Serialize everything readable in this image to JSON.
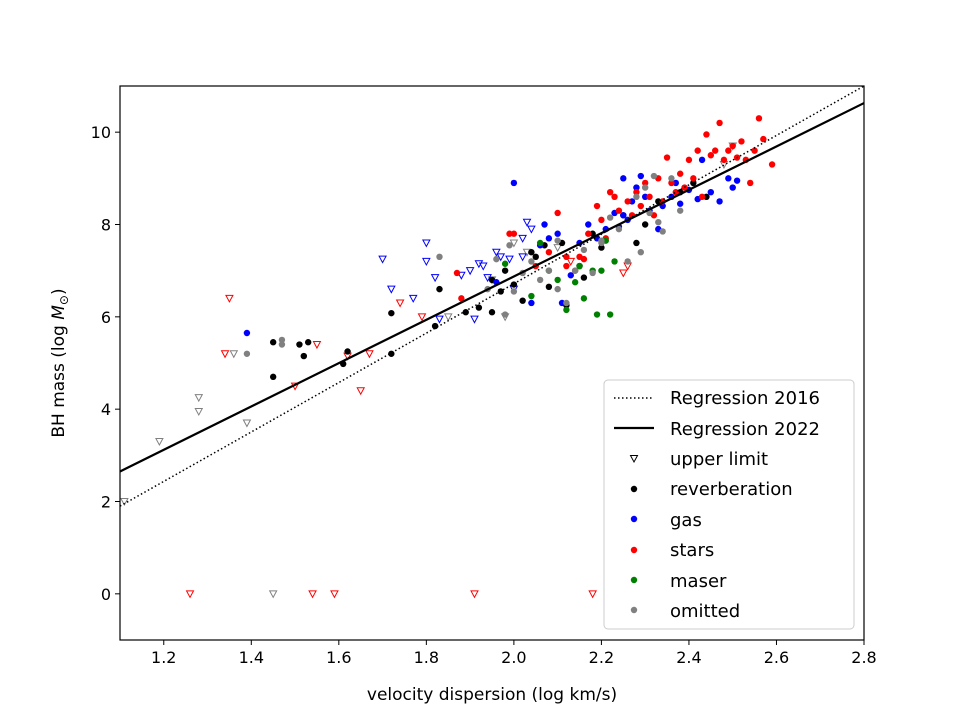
{
  "chart_data": {
    "type": "scatter",
    "title": "",
    "xlabel": "velocity dispersion (log km/s)",
    "ylabel_main": "BH mass (log ",
    "ylabel_symbol": "M",
    "ylabel_sub": "⊙",
    "ylabel_close": ")",
    "xlim": [
      1.1,
      2.8
    ],
    "ylim": [
      -1.0,
      11.0
    ],
    "xticks": [
      1.2,
      1.4,
      1.6,
      1.8,
      2.0,
      2.2,
      2.4,
      2.6,
      2.8
    ],
    "xtick_labels": [
      "1.2",
      "1.4",
      "1.6",
      "1.8",
      "2.0",
      "2.2",
      "2.4",
      "2.6",
      "2.8"
    ],
    "yticks": [
      0,
      2,
      4,
      6,
      8,
      10
    ],
    "ytick_labels": [
      "0",
      "2",
      "4",
      "6",
      "8",
      "10"
    ],
    "grid": false,
    "legend_position": "lower-right",
    "regression_lines": [
      {
        "name": "Regression 2016",
        "style": "dotted",
        "color": "#000000",
        "x": [
          1.1,
          2.8
        ],
        "y": [
          1.9,
          11.0
        ]
      },
      {
        "name": "Regression 2022",
        "style": "solid",
        "color": "#000000",
        "x": [
          1.1,
          2.8
        ],
        "y": [
          2.65,
          10.63
        ]
      }
    ],
    "series": [
      {
        "name": "upper limit",
        "marker": "triangle-down-open",
        "groups": [
          {
            "color": "#808080",
            "points": [
              [
                1.11,
                2.0
              ],
              [
                1.19,
                3.3
              ],
              [
                1.28,
                4.25
              ],
              [
                1.28,
                3.95
              ],
              [
                1.36,
                5.2
              ],
              [
                1.39,
                3.7
              ],
              [
                1.45,
                0.0
              ],
              [
                1.85,
                6.0
              ],
              [
                1.95,
                6.8
              ],
              [
                1.98,
                6.0
              ],
              [
                2.0,
                7.6
              ],
              [
                2.03,
                7.4
              ],
              [
                2.1,
                7.5
              ],
              [
                2.48,
                9.3
              ],
              [
                2.5,
                9.7
              ]
            ]
          },
          {
            "color": "#ff0000",
            "points": [
              [
                1.26,
                0.0
              ],
              [
                1.34,
                5.2
              ],
              [
                1.35,
                6.4
              ],
              [
                1.5,
                4.5
              ],
              [
                1.54,
                0.0
              ],
              [
                1.55,
                5.4
              ],
              [
                1.59,
                0.0
              ],
              [
                1.62,
                5.15
              ],
              [
                1.65,
                4.4
              ],
              [
                1.67,
                5.2
              ],
              [
                1.74,
                6.3
              ],
              [
                1.79,
                6.0
              ],
              [
                1.91,
                0.0
              ],
              [
                2.18,
                0.0
              ],
              [
                2.25,
                6.95
              ],
              [
                2.26,
                7.1
              ],
              [
                2.13,
                7.2
              ]
            ]
          },
          {
            "color": "#0000ff",
            "points": [
              [
                1.7,
                7.25
              ],
              [
                1.72,
                6.6
              ],
              [
                1.77,
                6.4
              ],
              [
                1.8,
                7.6
              ],
              [
                1.8,
                7.2
              ],
              [
                1.82,
                6.85
              ],
              [
                1.83,
                5.95
              ],
              [
                1.88,
                6.9
              ],
              [
                1.9,
                7.0
              ],
              [
                1.91,
                5.95
              ],
              [
                1.92,
                7.15
              ],
              [
                1.93,
                7.1
              ],
              [
                1.94,
                6.85
              ],
              [
                1.96,
                7.4
              ],
              [
                1.97,
                7.3
              ],
              [
                1.99,
                7.25
              ],
              [
                2.0,
                6.6
              ],
              [
                2.02,
                7.3
              ],
              [
                2.03,
                8.05
              ],
              [
                2.04,
                7.9
              ],
              [
                2.02,
                7.7
              ]
            ]
          }
        ]
      },
      {
        "name": "reverberation",
        "marker": "dot",
        "color": "#000000",
        "points": [
          [
            1.45,
            5.45
          ],
          [
            1.45,
            4.7
          ],
          [
            1.51,
            5.4
          ],
          [
            1.52,
            5.15
          ],
          [
            1.53,
            5.45
          ],
          [
            1.61,
            4.98
          ],
          [
            1.62,
            5.25
          ],
          [
            1.72,
            6.08
          ],
          [
            1.72,
            5.2
          ],
          [
            1.82,
            5.8
          ],
          [
            1.83,
            6.6
          ],
          [
            1.89,
            6.1
          ],
          [
            1.92,
            6.2
          ],
          [
            1.95,
            6.1
          ],
          [
            1.95,
            6.8
          ],
          [
            1.97,
            6.55
          ],
          [
            1.98,
            7.0
          ],
          [
            2.0,
            6.7
          ],
          [
            2.02,
            6.35
          ],
          [
            2.05,
            7.3
          ],
          [
            2.07,
            7.55
          ],
          [
            2.08,
            6.65
          ],
          [
            2.11,
            7.6
          ],
          [
            2.12,
            6.25
          ],
          [
            2.15,
            7.1
          ],
          [
            2.16,
            6.85
          ],
          [
            2.2,
            7.5
          ],
          [
            2.25,
            8.2
          ],
          [
            2.28,
            7.6
          ],
          [
            2.3,
            8.0
          ],
          [
            2.33,
            8.5
          ],
          [
            2.38,
            8.7
          ],
          [
            2.41,
            8.9
          ],
          [
            2.44,
            8.6
          ],
          [
            2.18,
            7.8
          ],
          [
            2.04,
            7.4
          ]
        ]
      },
      {
        "name": "gas",
        "marker": "dot",
        "color": "#0000ff",
        "points": [
          [
            1.39,
            5.65
          ],
          [
            1.96,
            6.75
          ],
          [
            2.0,
            8.9
          ],
          [
            2.04,
            6.3
          ],
          [
            2.06,
            7.55
          ],
          [
            2.07,
            8.0
          ],
          [
            2.1,
            7.8
          ],
          [
            2.11,
            6.3
          ],
          [
            2.13,
            6.9
          ],
          [
            2.15,
            7.6
          ],
          [
            2.17,
            8.0
          ],
          [
            2.19,
            7.7
          ],
          [
            2.21,
            7.9
          ],
          [
            2.23,
            8.25
          ],
          [
            2.24,
            7.95
          ],
          [
            2.25,
            8.2
          ],
          [
            2.26,
            8.1
          ],
          [
            2.27,
            8.5
          ],
          [
            2.28,
            8.8
          ],
          [
            2.29,
            9.05
          ],
          [
            2.3,
            8.6
          ],
          [
            2.31,
            8.3
          ],
          [
            2.33,
            7.9
          ],
          [
            2.34,
            8.4
          ],
          [
            2.36,
            8.6
          ],
          [
            2.37,
            8.9
          ],
          [
            2.38,
            8.45
          ],
          [
            2.4,
            8.75
          ],
          [
            2.42,
            8.55
          ],
          [
            2.43,
            9.4
          ],
          [
            2.45,
            8.7
          ],
          [
            2.47,
            8.5
          ],
          [
            2.49,
            9.0
          ],
          [
            2.5,
            8.8
          ],
          [
            2.51,
            8.95
          ],
          [
            2.25,
            9.0
          ],
          [
            2.08,
            7.7
          ]
        ]
      },
      {
        "name": "stars",
        "marker": "dot",
        "color": "#ff0000",
        "points": [
          [
            1.87,
            6.95
          ],
          [
            1.88,
            6.4
          ],
          [
            1.99,
            7.8
          ],
          [
            2.0,
            7.8
          ],
          [
            2.05,
            7.1
          ],
          [
            2.08,
            7.4
          ],
          [
            2.1,
            8.25
          ],
          [
            2.12,
            7.3
          ],
          [
            2.14,
            7.0
          ],
          [
            2.15,
            7.3
          ],
          [
            2.17,
            7.8
          ],
          [
            2.19,
            8.4
          ],
          [
            2.2,
            8.1
          ],
          [
            2.21,
            7.7
          ],
          [
            2.23,
            8.6
          ],
          [
            2.24,
            8.3
          ],
          [
            2.26,
            8.5
          ],
          [
            2.27,
            8.2
          ],
          [
            2.28,
            8.7
          ],
          [
            2.29,
            8.4
          ],
          [
            2.3,
            8.9
          ],
          [
            2.31,
            8.6
          ],
          [
            2.32,
            8.2
          ],
          [
            2.33,
            9.0
          ],
          [
            2.34,
            8.5
          ],
          [
            2.35,
            9.45
          ],
          [
            2.36,
            8.9
          ],
          [
            2.37,
            8.7
          ],
          [
            2.38,
            9.1
          ],
          [
            2.39,
            8.8
          ],
          [
            2.4,
            9.4
          ],
          [
            2.41,
            9.0
          ],
          [
            2.42,
            9.6
          ],
          [
            2.43,
            8.6
          ],
          [
            2.44,
            9.95
          ],
          [
            2.45,
            9.5
          ],
          [
            2.46,
            9.6
          ],
          [
            2.47,
            10.2
          ],
          [
            2.48,
            9.4
          ],
          [
            2.49,
            9.6
          ],
          [
            2.5,
            9.7
          ],
          [
            2.51,
            9.45
          ],
          [
            2.52,
            9.8
          ],
          [
            2.53,
            9.4
          ],
          [
            2.54,
            8.9
          ],
          [
            2.55,
            9.6
          ],
          [
            2.56,
            10.3
          ],
          [
            2.57,
            9.85
          ],
          [
            2.59,
            9.3
          ],
          [
            2.12,
            7.1
          ],
          [
            2.16,
            7.25
          ],
          [
            2.22,
            8.7
          ]
        ]
      },
      {
        "name": "maser",
        "marker": "dot",
        "color": "#008000",
        "points": [
          [
            1.98,
            7.15
          ],
          [
            2.04,
            6.45
          ],
          [
            2.06,
            7.6
          ],
          [
            2.08,
            7.0
          ],
          [
            2.1,
            6.8
          ],
          [
            2.12,
            6.15
          ],
          [
            2.14,
            6.75
          ],
          [
            2.15,
            7.1
          ],
          [
            2.16,
            6.4
          ],
          [
            2.18,
            7.0
          ],
          [
            2.19,
            6.05
          ],
          [
            2.2,
            7.0
          ],
          [
            2.21,
            7.65
          ],
          [
            2.22,
            6.05
          ],
          [
            2.23,
            7.2
          ]
        ]
      },
      {
        "name": "omitted",
        "marker": "dot",
        "color": "#808080",
        "points": [
          [
            1.39,
            5.2
          ],
          [
            1.47,
            5.5
          ],
          [
            1.47,
            5.4
          ],
          [
            1.83,
            7.3
          ],
          [
            1.94,
            6.6
          ],
          [
            1.96,
            7.25
          ],
          [
            1.98,
            6.05
          ],
          [
            1.99,
            7.55
          ],
          [
            2.0,
            6.55
          ],
          [
            2.02,
            6.95
          ],
          [
            2.04,
            7.2
          ],
          [
            2.06,
            6.8
          ],
          [
            2.08,
            7.0
          ],
          [
            2.1,
            6.6
          ],
          [
            2.12,
            6.3
          ],
          [
            2.14,
            7.0
          ],
          [
            2.16,
            7.45
          ],
          [
            2.18,
            6.95
          ],
          [
            2.2,
            7.6
          ],
          [
            2.22,
            8.15
          ],
          [
            2.24,
            7.9
          ],
          [
            2.26,
            7.2
          ],
          [
            2.28,
            8.6
          ],
          [
            2.29,
            7.4
          ],
          [
            2.3,
            8.8
          ],
          [
            2.31,
            8.25
          ],
          [
            2.32,
            9.05
          ],
          [
            2.33,
            8.05
          ],
          [
            2.34,
            7.85
          ],
          [
            2.36,
            9.0
          ],
          [
            2.38,
            8.3
          ],
          [
            2.1,
            7.65
          ],
          [
            2.2,
            7.65
          ]
        ]
      }
    ]
  }
}
